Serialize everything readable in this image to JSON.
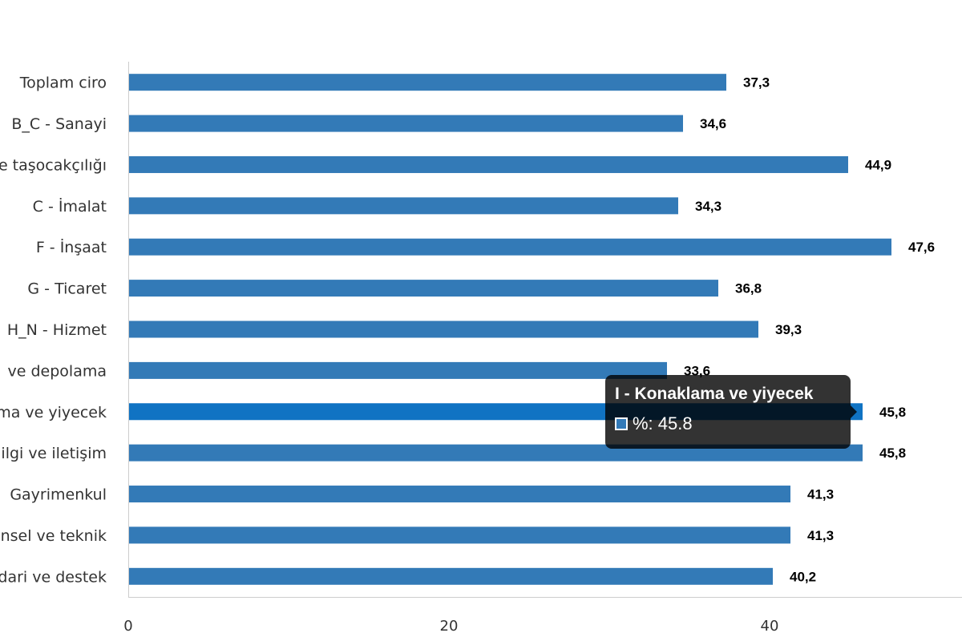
{
  "chart_data": {
    "type": "bar",
    "orientation": "horizontal",
    "categories": [
      "Toplam ciro",
      "B_C - Sanayi",
      "e taşocakçılığı",
      "C - İmalat",
      "F - İnşaat",
      "G - Ticaret",
      "H_N - Hizmet",
      "ve depolama",
      "ma ve yiyecek",
      "ilgi ve iletişim",
      "Gayrimenkul",
      "nsel ve teknik",
      "dari ve destek"
    ],
    "values": [
      37.3,
      34.6,
      44.9,
      34.3,
      47.6,
      36.8,
      39.3,
      33.6,
      45.8,
      45.8,
      41.3,
      41.3,
      40.2
    ],
    "value_labels": [
      "37,3",
      "34,6",
      "44,9",
      "34,3",
      "47,6",
      "36,8",
      "39,3",
      "33,6",
      "45,8",
      "45,8",
      "41,3",
      "41,3",
      "40,2"
    ],
    "x_ticks": [
      "0",
      "20",
      "40"
    ],
    "xlim": [
      0,
      52
    ],
    "grid": false,
    "highlighted_index": 8
  },
  "colors": {
    "bar": "#337ab7",
    "bar_highlight": "#1073c3",
    "axis": "#cccccc"
  },
  "tooltip": {
    "title": "I - Konaklama ve yiyecek",
    "series_label": "%: 45.8"
  }
}
